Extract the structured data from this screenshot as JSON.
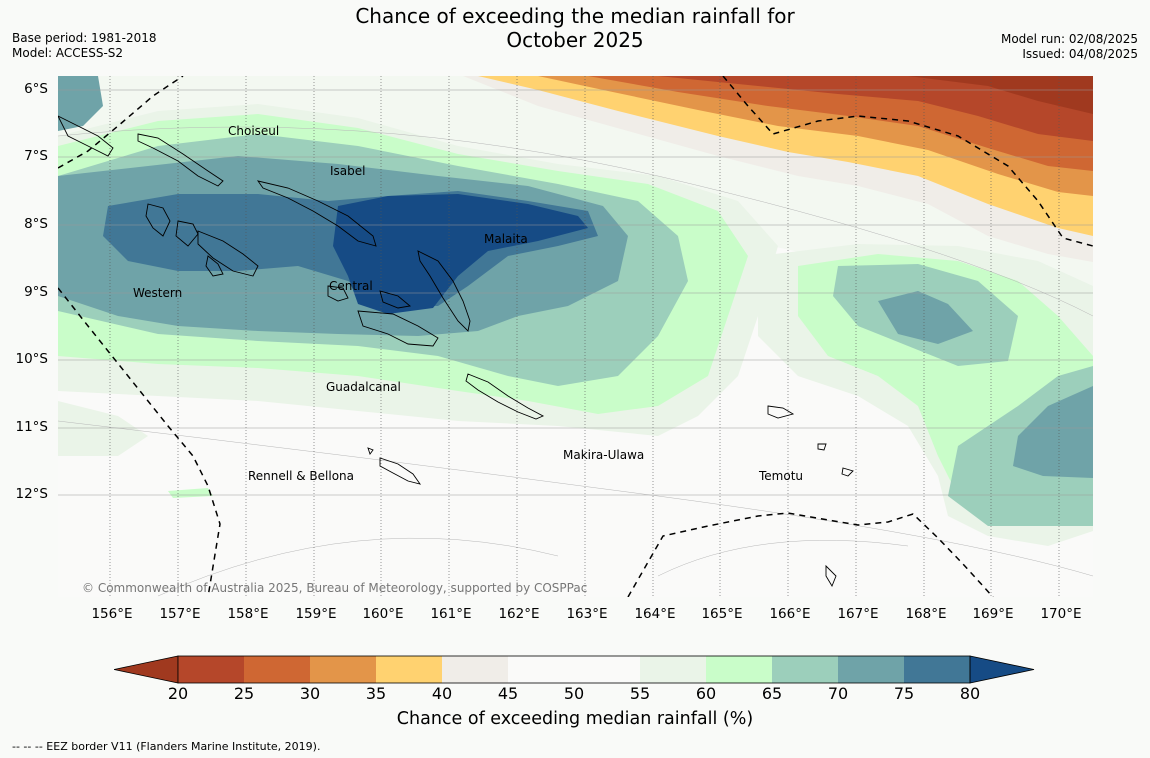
{
  "title": {
    "line1": "Chance of exceeding the median rainfall for",
    "line2": "October 2025"
  },
  "meta": {
    "base_period": "Base period: 1981-2018",
    "model": "Model: ACCESS-S2",
    "model_run": "Model run: 02/08/2025",
    "issued": "Issued: 04/08/2025"
  },
  "map": {
    "x_ticks": [
      "156°E",
      "157°E",
      "158°E",
      "159°E",
      "160°E",
      "161°E",
      "162°E",
      "163°E",
      "164°E",
      "165°E",
      "166°E",
      "167°E",
      "168°E",
      "169°E",
      "170°E"
    ],
    "y_ticks": [
      "6°S",
      "7°S",
      "8°S",
      "9°S",
      "10°S",
      "11°S",
      "12°S"
    ],
    "regions": [
      "Choiseul",
      "Isabel",
      "Malaita",
      "Western",
      "Central",
      "Guadalcanal",
      "Makira-Ulawa",
      "Rennell & Bellona",
      "Temotu"
    ],
    "copyright": "© Commonwealth of Australia 2025, Bureau of Meteorology, supported by COSPPac"
  },
  "colorbar": {
    "ticks": [
      "20",
      "25",
      "30",
      "35",
      "40",
      "45",
      "50",
      "55",
      "60",
      "65",
      "70",
      "75",
      "80"
    ],
    "colors": [
      "#a0391f",
      "#b5472a",
      "#cf6733",
      "#e39549",
      "#ffd270",
      "#f0ede8",
      "#fafaf9",
      "#fafaf9",
      "#eaf4e8",
      "#c9fdc9",
      "#9ccfbb",
      "#6fa3a8",
      "#417796",
      "#164b85"
    ],
    "label": "Chance of exceeding median rainfall (%)"
  },
  "footnote": "--  --  -- EEZ border V11 (Flanders Marine Institute, 2019)."
}
